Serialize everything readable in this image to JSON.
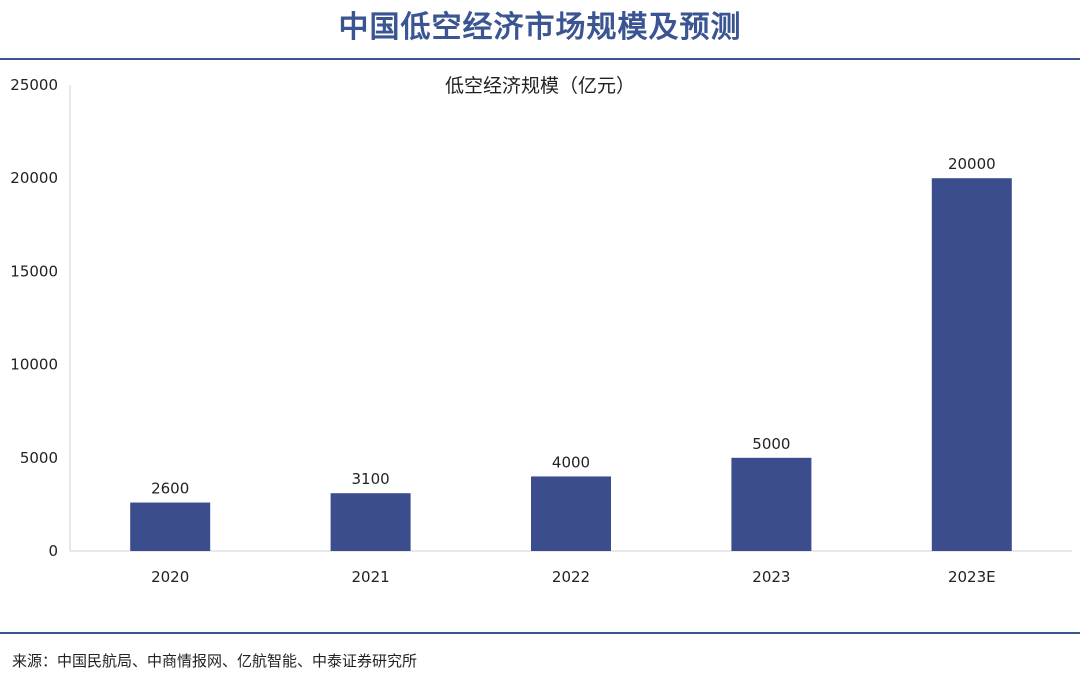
{
  "page": {
    "title": "中国低空经济市场规模及预测",
    "source": "来源：中国民航局、中商情报网、亿航智能、中泰证券研究所"
  },
  "colors": {
    "accent": "#3a5592",
    "bar": "#3b4d8c",
    "axis": "#d0d0d0"
  },
  "chart_data": {
    "type": "bar",
    "title": "低空经济规模（亿元）",
    "xlabel": "",
    "ylabel": "",
    "categories": [
      "2020",
      "2021",
      "2022",
      "2023",
      "2023E"
    ],
    "values": [
      2600,
      3100,
      4000,
      5000,
      20000
    ],
    "data_labels": [
      "2600",
      "3100",
      "4000",
      "5000",
      "20000"
    ],
    "yticks": [
      "0",
      "5000",
      "10000",
      "15000",
      "20000",
      "25000"
    ],
    "ylim": [
      0,
      25000
    ],
    "grid": false,
    "legend": "none"
  }
}
